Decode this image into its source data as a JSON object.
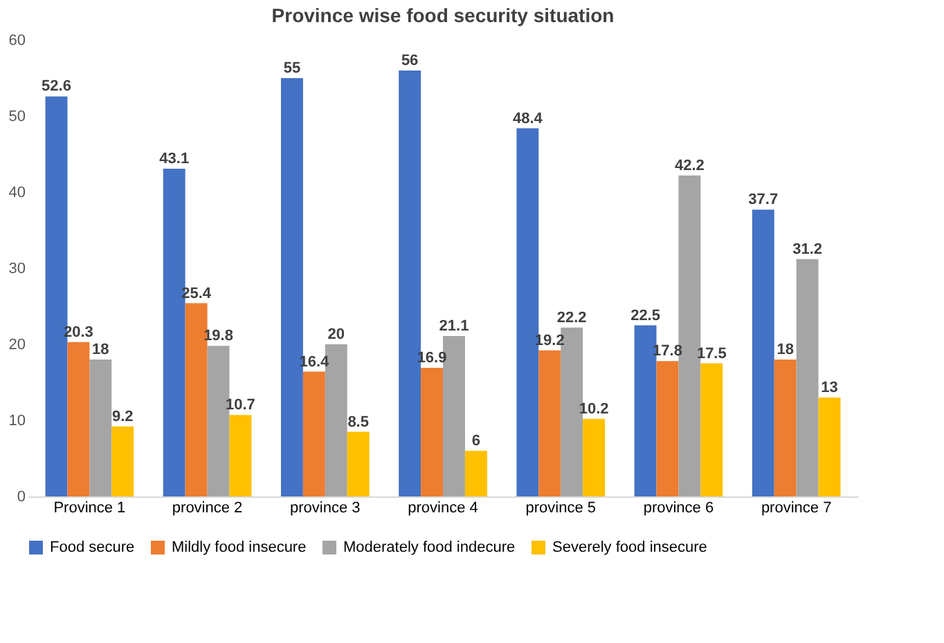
{
  "chart_data": {
    "type": "bar",
    "title": "Province wise food security situation",
    "categories": [
      "Province 1",
      "province 2",
      "province 3",
      "province 4",
      "province 5",
      "province 6",
      "province 7"
    ],
    "series": [
      {
        "name": "Food secure",
        "color": "#4472c4",
        "values": [
          52.6,
          43.1,
          55,
          56,
          48.4,
          22.5,
          37.7
        ]
      },
      {
        "name": "Mildly food insecure",
        "color": "#ed7d31",
        "values": [
          20.3,
          25.4,
          16.4,
          16.9,
          19.2,
          17.8,
          18
        ]
      },
      {
        "name": "Moderately food indecure",
        "color": "#a5a5a5",
        "values": [
          18,
          19.8,
          20,
          21.1,
          22.2,
          42.2,
          31.2
        ]
      },
      {
        "name": "Severely food insecure",
        "color": "#ffc000",
        "values": [
          9.2,
          10.7,
          8.5,
          6,
          10.2,
          17.5,
          13
        ]
      }
    ],
    "ylim": [
      0,
      60
    ],
    "yticks": [
      0,
      10,
      20,
      30,
      40,
      50,
      60
    ],
    "grid": false,
    "legend": "bottom",
    "data_labels": true
  }
}
